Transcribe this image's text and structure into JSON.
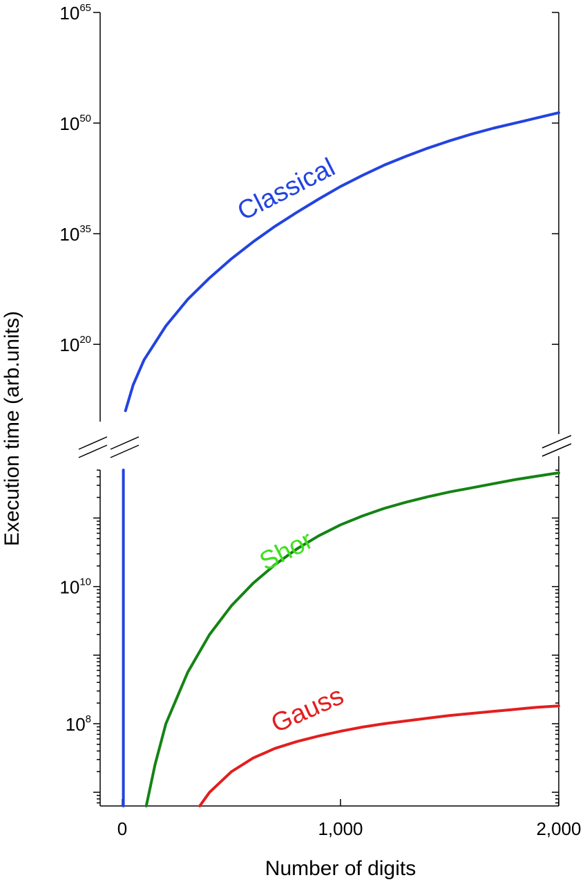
{
  "chart_data": {
    "type": "line",
    "title": "",
    "xlabel": "Number of digits",
    "ylabel": "Execution time (arb.units)",
    "xlim": [
      0,
      2000
    ],
    "x_ticks": [
      {
        "value": 0,
        "label": "0"
      },
      {
        "value": 1000,
        "label": "1,000"
      },
      {
        "value": 2000,
        "label": "2,000"
      }
    ],
    "y_scale": "log",
    "y_axis_break": true,
    "upper_panel": {
      "ylim_exponent": [
        10,
        65
      ],
      "y_ticks": [
        {
          "exponent": 65,
          "base": "10",
          "exp": "65"
        },
        {
          "exponent": 50,
          "base": "10",
          "exp": "50"
        },
        {
          "exponent": 35,
          "base": "10",
          "exp": "35"
        },
        {
          "exponent": 20,
          "base": "10",
          "exp": "20"
        }
      ]
    },
    "lower_panel": {
      "ylim_exponent": [
        6.8,
        11.7
      ],
      "y_ticks": [
        {
          "exponent": 10,
          "base": "10",
          "exp": "10"
        },
        {
          "exponent": 8,
          "base": "10",
          "exp": "8"
        }
      ]
    },
    "series": [
      {
        "name": "Classical",
        "color": "#2343e0",
        "panel": "upper",
        "x": [
          15,
          50,
          100,
          200,
          300,
          400,
          500,
          600,
          700,
          800,
          900,
          1000,
          1100,
          1200,
          1300,
          1400,
          1500,
          1600,
          1700,
          1800,
          1900,
          2000
        ],
        "log10_y": [
          11,
          14.5,
          17.9,
          22.5,
          26.1,
          29.0,
          31.6,
          33.9,
          36.0,
          37.9,
          39.7,
          41.4,
          42.9,
          44.3,
          45.5,
          46.6,
          47.6,
          48.5,
          49.3,
          50.0,
          50.7,
          51.4
        ]
      },
      {
        "name": "Shor",
        "color": "#148314",
        "panel": "lower",
        "x": [
          110,
          150,
          200,
          300,
          400,
          500,
          600,
          700,
          800,
          900,
          1000,
          1100,
          1200,
          1300,
          1400,
          1500,
          1600,
          1700,
          1800,
          1900,
          2000
        ],
        "log10_y": [
          6.8,
          7.4,
          8.0,
          8.75,
          9.3,
          9.72,
          10.05,
          10.32,
          10.55,
          10.74,
          10.9,
          11.03,
          11.14,
          11.23,
          11.31,
          11.38,
          11.44,
          11.5,
          11.56,
          11.61,
          11.66
        ]
      },
      {
        "name": "Gauss",
        "color": "#e31e1e",
        "panel": "lower",
        "x": [
          355,
          400,
          500,
          600,
          700,
          800,
          900,
          1000,
          1100,
          1200,
          1300,
          1400,
          1500,
          1600,
          1700,
          1800,
          1900,
          2000
        ],
        "log10_y": [
          6.8,
          7.0,
          7.3,
          7.5,
          7.64,
          7.74,
          7.82,
          7.89,
          7.95,
          8.0,
          8.04,
          8.08,
          8.12,
          8.15,
          8.18,
          8.21,
          8.24,
          8.26
        ]
      },
      {
        "name": "",
        "color": "#2343e0",
        "panel": "lower",
        "x": [
          5,
          5
        ],
        "log10_y": [
          6.8,
          11.7
        ]
      }
    ]
  }
}
